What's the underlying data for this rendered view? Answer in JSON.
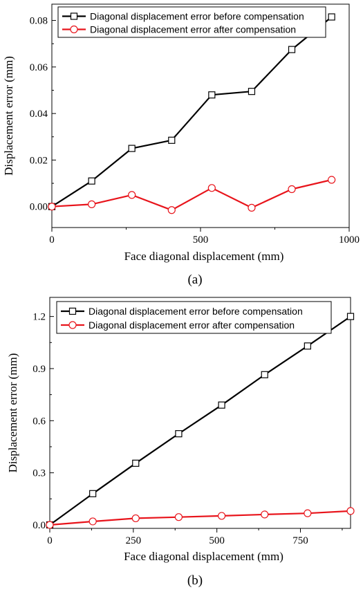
{
  "chart_data": [
    {
      "type": "line",
      "caption": "(a)",
      "xlabel": "Face diagonal displacement (mm)",
      "ylabel": "Displacement error (mm)",
      "xlim": [
        0,
        1000
      ],
      "ylim": [
        -0.009,
        0.087
      ],
      "x_ticks": [
        0,
        500,
        1000
      ],
      "x_tick_labels": [
        "0",
        "500",
        "1000"
      ],
      "y_ticks": [
        0.0,
        0.02,
        0.04,
        0.06,
        0.08
      ],
      "y_tick_labels": [
        "0.00",
        "0.02",
        "0.04",
        "0.06",
        "0.08"
      ],
      "grid": false,
      "legend_position": "top-left",
      "x": [
        0,
        134,
        269,
        403,
        538,
        672,
        807,
        941
      ],
      "series": [
        {
          "name": "Diagonal displacement error before compensation",
          "color": "#000000",
          "marker": "square",
          "values": [
            0.0,
            0.011,
            0.025,
            0.0285,
            0.048,
            0.0495,
            0.0675,
            0.0815
          ]
        },
        {
          "name": "Diagonal displacement error after compensation",
          "color": "#e8141b",
          "marker": "circle",
          "values": [
            0.0,
            0.001,
            0.005,
            -0.0015,
            0.008,
            -0.0005,
            0.0075,
            0.0115
          ]
        }
      ]
    },
    {
      "type": "line",
      "caption": "(b)",
      "xlabel": "Face diagonal displacement (mm)",
      "ylabel": "Displacement error (mm)",
      "xlim": [
        0,
        900
      ],
      "ylim": [
        -0.02,
        1.31
      ],
      "x_ticks": [
        0,
        250,
        500,
        750
      ],
      "x_tick_labels": [
        "0",
        "250",
        "500",
        "750"
      ],
      "y_ticks": [
        0.0,
        0.3,
        0.6,
        0.9,
        1.2
      ],
      "y_tick_labels": [
        "0.0",
        "0.3",
        "0.6",
        "0.9",
        "1.2"
      ],
      "grid": false,
      "legend_position": "top-left",
      "x": [
        0,
        128.6,
        257.1,
        385.7,
        514.3,
        642.9,
        771.4,
        900
      ],
      "series": [
        {
          "name": "Diagonal displacement error before compensation",
          "color": "#000000",
          "marker": "square",
          "values": [
            0.0,
            0.18,
            0.355,
            0.525,
            0.69,
            0.865,
            1.03,
            1.2
          ]
        },
        {
          "name": "Diagonal displacement error after compensation",
          "color": "#e8141b",
          "marker": "circle",
          "values": [
            0.0,
            0.02,
            0.038,
            0.045,
            0.052,
            0.06,
            0.067,
            0.08
          ]
        }
      ]
    }
  ]
}
